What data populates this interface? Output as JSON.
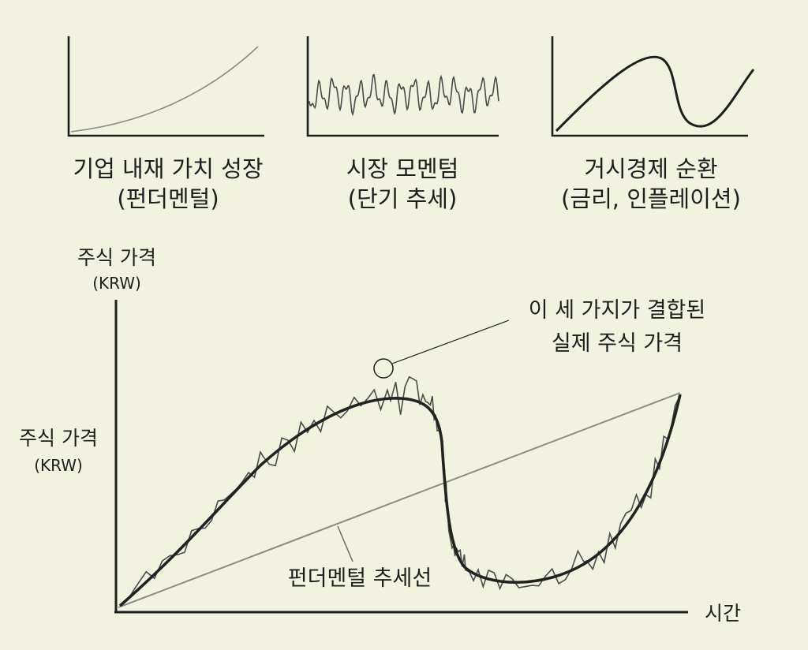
{
  "panels": [
    {
      "caption_line1": "기업 내재 가치 성장",
      "caption_line2": "(펀더멘털)",
      "shape": "smooth-rising-curve"
    },
    {
      "caption_line1": "시장 모멘텀",
      "caption_line2": "(단기 추세)",
      "shape": "oscillation"
    },
    {
      "caption_line1": "거시경제 순환",
      "caption_line2": "(금리, 인플레이션)",
      "shape": "s-cycle"
    }
  ],
  "main": {
    "y_label_top": "주식 가격",
    "y_unit_top": "(KRW)",
    "y_label_side": "주식 가격",
    "y_unit_side": "(KRW)",
    "x_label": "시간",
    "annotation_line1": "이 세 가지가 결합된",
    "annotation_line2": "실제 주식 가격",
    "trendline_label": "펀더멘털 추세선"
  },
  "colors": {
    "background": "#f2f3df",
    "ink": "#1e1e1e",
    "trendline": "#8c8c84",
    "noise": "#4a4a4a"
  },
  "chart_data": [
    {
      "type": "line",
      "title": "기업 내재 가치 성장 (펀더멘털)",
      "series": [
        {
          "values": [
            0.04,
            0.08,
            0.14,
            0.22,
            0.32,
            0.44,
            0.58,
            0.74,
            0.92,
            1.0
          ]
        }
      ],
      "x": [
        0,
        0.11,
        0.22,
        0.33,
        0.44,
        0.55,
        0.66,
        0.77,
        0.9,
        1.0
      ]
    },
    {
      "type": "line",
      "title": "시장 모멘텀 (단기 추세)",
      "series": [
        {
          "values": [
            0.1,
            0.85,
            0.2,
            0.7,
            0.15,
            0.9,
            0.25,
            0.75,
            0.1,
            0.8,
            0.3,
            0.9,
            0.2,
            0.7,
            0.15,
            0.85,
            0.3,
            0.75,
            0.2,
            0.6
          ]
        }
      ]
    },
    {
      "type": "line",
      "title": "거시경제 순환 (금리, 인플레이션)",
      "series": [
        {
          "values": [
            0.0,
            0.35,
            0.72,
            0.97,
            0.6,
            0.1,
            0.08,
            0.3,
            0.63,
            0.98
          ]
        }
      ],
      "x": [
        0,
        0.1,
        0.2,
        0.42,
        0.56,
        0.63,
        0.72,
        0.82,
        0.92,
        1.0
      ]
    },
    {
      "type": "line",
      "xlabel": "시간",
      "ylabel": "주식 가격 (KRW)",
      "series": [
        {
          "name": "펀더멘털 추세선",
          "x": [
            0,
            1
          ],
          "values": [
            0.0,
            1.0
          ]
        },
        {
          "x": [
            0,
            0.07,
            0.14,
            0.22,
            0.3,
            0.37,
            0.44,
            0.5,
            0.53,
            0.55,
            0.57,
            0.59,
            0.63,
            0.7,
            0.78,
            0.85,
            0.92,
            0.96,
            1.0
          ],
          "values": [
            0.0,
            0.18,
            0.38,
            0.58,
            0.74,
            0.86,
            0.92,
            0.94,
            0.9,
            0.76,
            0.45,
            0.22,
            0.14,
            0.12,
            0.14,
            0.28,
            0.5,
            0.72,
            0.98
          ]
        }
      ],
      "annotations": [
        "이 세 가지가 결합된 실제 주식 가격"
      ]
    }
  ]
}
